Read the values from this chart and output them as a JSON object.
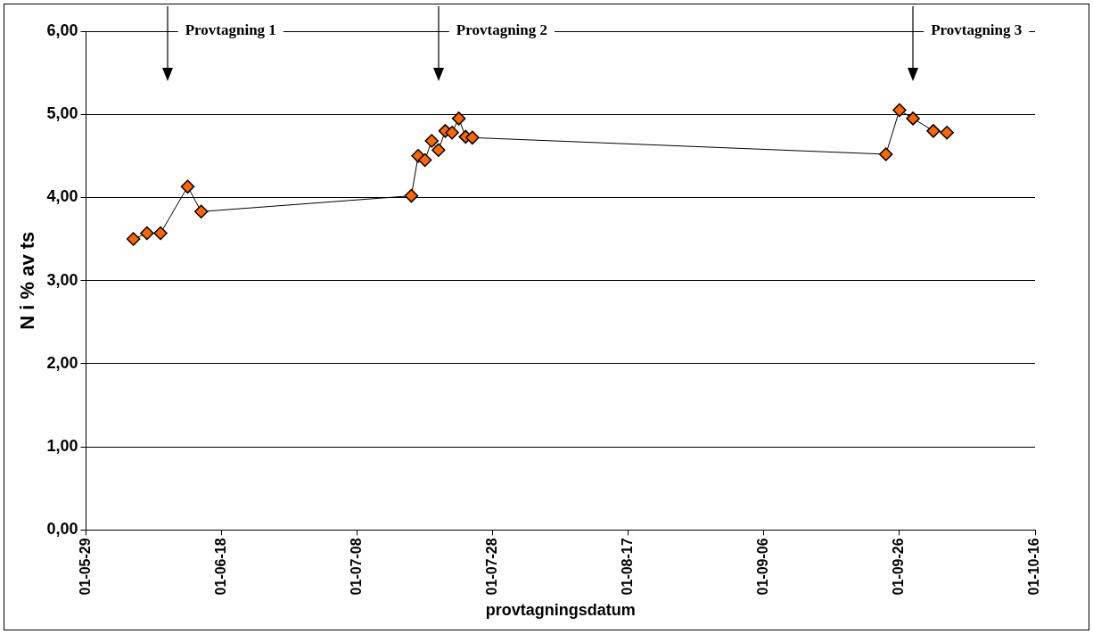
{
  "chart_data": {
    "type": "line",
    "x": [
      "--06-05",
      "--06-07",
      "--06-09",
      "--06-13",
      "--06-15",
      "--07-16",
      "--07-17",
      "--07-18",
      "--07-19",
      "--07-20",
      "--07-21",
      "--07-22",
      "--07-23",
      "--07-24",
      "--07-25",
      "--09-24",
      "--09-26",
      "--09-28",
      "--10-01",
      "--10-03"
    ],
    "series": [
      {
        "color": "#ff6600",
        "values": [
          3.5,
          3.57,
          3.57,
          4.13,
          3.83,
          4.02,
          4.5,
          4.45,
          4.68,
          4.57,
          4.8,
          4.78,
          4.95,
          4.73,
          4.72,
          4.52,
          5.05,
          4.95,
          4.8,
          4.78
        ]
      }
    ],
    "xlabel": "provtagningsdatum",
    "ylabel": "N i % av ts",
    "xlim": [
      "--05-29",
      "--10-16"
    ],
    "xticks": [
      {
        "value": "--05-29",
        "label": "01-05-29"
      },
      {
        "value": "--06-18",
        "label": "01-06-18"
      },
      {
        "value": "--07-08",
        "label": "01-07-08"
      },
      {
        "value": "--07-28",
        "label": "01-07-28"
      },
      {
        "value": "--08-17",
        "label": "01-08-17"
      },
      {
        "value": "--09-06",
        "label": "01-09-06"
      },
      {
        "value": "--09-26",
        "label": "01-09-26"
      },
      {
        "value": "--10-16",
        "label": "01-10-16"
      }
    ],
    "ylim": [
      0,
      6
    ],
    "yticks": [
      {
        "value": 0,
        "label": "0,00"
      },
      {
        "value": 1,
        "label": "1,00"
      },
      {
        "value": 2,
        "label": "2,00"
      },
      {
        "value": 3,
        "label": "3,00"
      },
      {
        "value": 4,
        "label": "4,00"
      },
      {
        "value": 5,
        "label": "5,00"
      },
      {
        "value": 6,
        "label": "6,00"
      }
    ],
    "ref_lines": [
      {
        "axis": "x",
        "value": "--06-10",
        "label": "Provtagning 1"
      },
      {
        "axis": "x",
        "value": "--07-20",
        "label": "Provtagning 2"
      },
      {
        "axis": "x",
        "value": "--09-28",
        "label": "Provtagning 3"
      }
    ],
    "grid": "y",
    "marker": "diamond",
    "line_style": "solid",
    "legend": false
  }
}
